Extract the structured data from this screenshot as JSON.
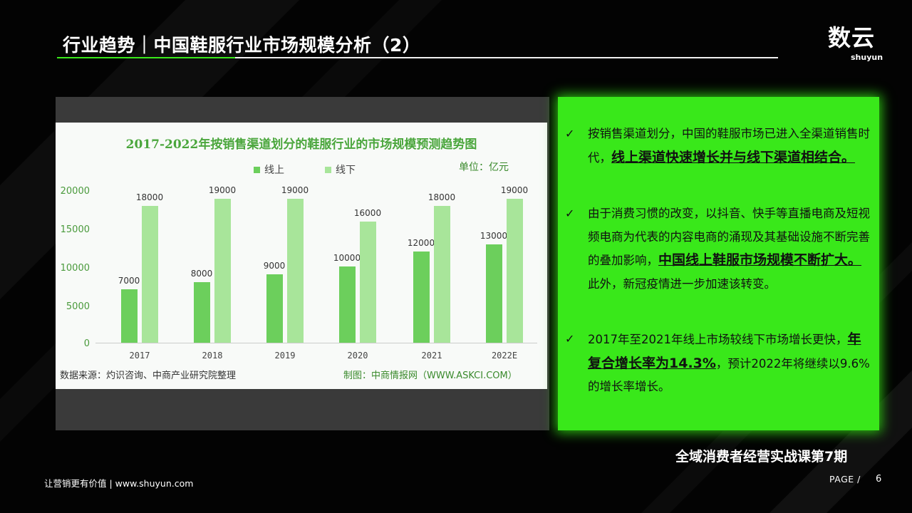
{
  "header": {
    "title": "行业趋势｜中国鞋服行业市场规模分析（2）",
    "logo_main": "数云",
    "logo_sub": "shuyun"
  },
  "chart": {
    "title": "2017-2022年按销售渠道划分的鞋服行业的市场规模预测趋势图",
    "unit": "单位：亿元",
    "source": "数据来源：灼识咨询、中商产业研究院整理",
    "credit": "制图：中商情报网（WWW.ASKCI.COM）",
    "y_ticks": [
      "20000",
      "15000",
      "10000",
      "5000",
      "0"
    ]
  },
  "chart_data": {
    "type": "bar",
    "title": "2017-2022年按销售渠道划分的鞋服行业的市场规模预测趋势图",
    "categories": [
      "2017",
      "2018",
      "2019",
      "2020",
      "2021",
      "2022E"
    ],
    "series": [
      {
        "name": "线上",
        "values": [
          7000,
          8000,
          9000,
          10000,
          12000,
          13000
        ],
        "color": "#6ccf5c"
      },
      {
        "name": "线下",
        "values": [
          18000,
          19000,
          19000,
          16000,
          18000,
          19000
        ],
        "color": "#a8e59a"
      }
    ],
    "ylim": [
      0,
      20000
    ],
    "legend_position": "top-center",
    "grid": false
  },
  "panel": {
    "check_symbol": "✓",
    "b1_plain": "按销售渠道划分，中国的鞋服市场已进入全渠道销售时代，",
    "b1_em": "线上渠道快速增长并与线下渠道相结合。",
    "b2_plain": "由于消费习惯的改变，以抖音、快手等直播电商及短视频电商为代表的内容电商的涌现及其基础设施不断完善的叠加影响，",
    "b2_em": "中国线上鞋服市场规模不断扩大。",
    "b2_tail": "此外，新冠疫情进一步加速该转变。",
    "b3_plain": "2017年至2021年线上市场较线下市场增长更快，",
    "b3_em": "年复合增长率为14.3%",
    "b3_tail": "，预计2022年将继续以9.6%的增长率增长。"
  },
  "footer": {
    "course": "全域消费者经营实战课第7期",
    "slogan": "让营销更有价值  |  www.shuyun.com",
    "page_label": "PAGE  /",
    "page_number": "6"
  },
  "colors": {
    "accent": "#39e81a",
    "background": "#030303"
  }
}
